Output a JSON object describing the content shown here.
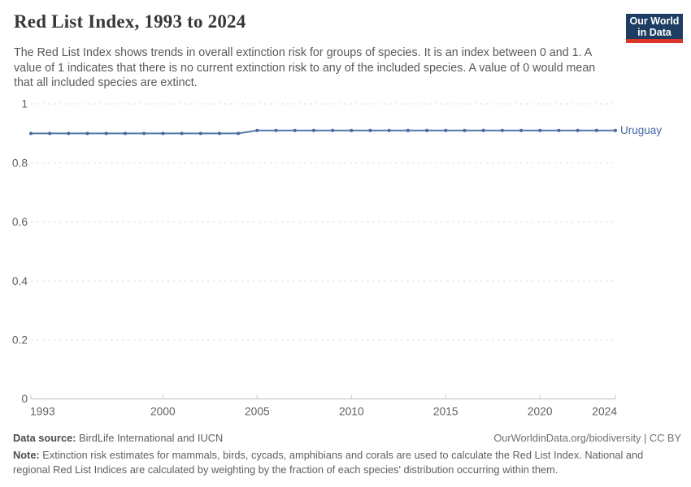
{
  "header": {
    "title": "Red List Index, 1993 to 2024",
    "subtitle": "The Red List Index shows trends in overall extinction risk for groups of species. It is an index between 0 and 1. A value of 1 indicates that there is no current extinction risk to any of the included species. A value of 0 would mean that all included species are extinct."
  },
  "logo": {
    "line1": "Our World",
    "line2": "in Data",
    "background_color": "#1d3d63",
    "accent_color": "#dc352a"
  },
  "footer": {
    "data_source_label": "Data source:",
    "data_source_value": "BirdLife International and IUCN",
    "attribution": "OurWorldinData.org/biodiversity | CC BY",
    "note_label": "Note:",
    "note_text": "Extinction risk estimates for mammals, birds, cycads, amphibians and corals are used to calculate the Red List Index. National and regional Red List Indices are calculated by weighting by the fraction of each species' distribution occurring within them."
  },
  "chart_data": {
    "type": "line",
    "title": "Red List Index, 1993 to 2024",
    "x": [
      1993,
      1994,
      1995,
      1996,
      1997,
      1998,
      1999,
      2000,
      2001,
      2002,
      2003,
      2004,
      2005,
      2006,
      2007,
      2008,
      2009,
      2010,
      2011,
      2012,
      2013,
      2014,
      2015,
      2016,
      2017,
      2018,
      2019,
      2020,
      2021,
      2022,
      2023,
      2024
    ],
    "series": [
      {
        "name": "Uruguay",
        "color": "#5578aa",
        "marker_color": "#44669f",
        "label_color": "#4267a8",
        "values": [
          0.9,
          0.9,
          0.9,
          0.9,
          0.9,
          0.9,
          0.9,
          0.9,
          0.9,
          0.9,
          0.9,
          0.9,
          0.91,
          0.91,
          0.91,
          0.91,
          0.91,
          0.91,
          0.91,
          0.91,
          0.91,
          0.91,
          0.91,
          0.91,
          0.91,
          0.91,
          0.91,
          0.91,
          0.91,
          0.91,
          0.91,
          0.91
        ]
      }
    ],
    "xlim": [
      1993,
      2024
    ],
    "ylim": [
      0,
      1
    ],
    "yticks": [
      0,
      0.2,
      0.4,
      0.6,
      0.8,
      1
    ],
    "xticks": [
      1993,
      2000,
      2005,
      2010,
      2015,
      2020,
      2024
    ],
    "xlabel": "",
    "ylabel": "",
    "grid": "horizontal-dashed",
    "legend_position": "line-end-label"
  }
}
